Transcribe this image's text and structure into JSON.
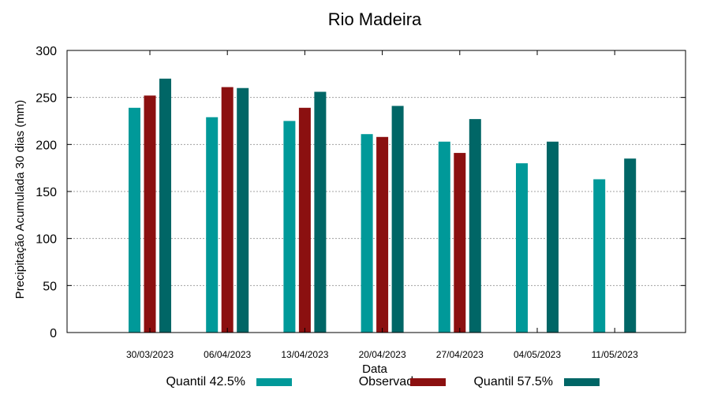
{
  "chart_data": {
    "type": "bar",
    "title": "Rio Madeira",
    "xlabel": "Data",
    "ylabel": "Precipitação Acumulada 30 dias (mm)",
    "ylim": [
      0,
      300
    ],
    "yticks": [
      0,
      50,
      100,
      150,
      200,
      250,
      300
    ],
    "grid": true,
    "legend_position": "bottom",
    "categories": [
      "30/03/2023",
      "06/04/2023",
      "13/04/2023",
      "20/04/2023",
      "27/04/2023",
      "04/05/2023",
      "11/05/2023"
    ],
    "series": [
      {
        "name": "Quantil 42.5%",
        "color": "#009999",
        "values": [
          239,
          229,
          225,
          211,
          203,
          180,
          163
        ]
      },
      {
        "name": "Observado",
        "color": "#8b1010",
        "values": [
          252,
          261,
          239,
          208,
          191,
          null,
          null
        ]
      },
      {
        "name": "Quantil 57.5%",
        "color": "#006666",
        "values": [
          270,
          260,
          256,
          241,
          227,
          203,
          185
        ]
      }
    ]
  }
}
